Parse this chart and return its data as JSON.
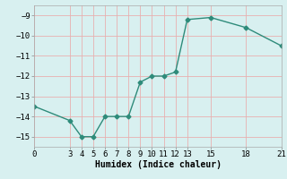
{
  "xlabel": "Humidex (Indice chaleur)",
  "x_data": [
    0,
    3,
    4,
    5,
    6,
    7,
    8,
    9,
    10,
    11,
    12,
    13,
    15,
    18,
    21
  ],
  "y_data": [
    -13.5,
    -14.2,
    -15.0,
    -15.0,
    -14.0,
    -14.0,
    -14.0,
    -12.3,
    -12.0,
    -12.0,
    -11.8,
    -9.2,
    -9.1,
    -9.6,
    -10.5
  ],
  "line_color": "#2e8b7a",
  "bg_color": "#d8f0f0",
  "grid_color": "#e8b0b0",
  "xlim": [
    0,
    21
  ],
  "ylim": [
    -15.5,
    -8.5
  ],
  "xticks": [
    0,
    3,
    4,
    5,
    6,
    7,
    8,
    9,
    10,
    11,
    12,
    13,
    15,
    18,
    21
  ],
  "yticks": [
    -15,
    -14,
    -13,
    -12,
    -11,
    -10,
    -9
  ],
  "marker": "D",
  "markersize": 2.5,
  "linewidth": 1.0,
  "fontsize_label": 7,
  "fontsize_tick": 6.5
}
